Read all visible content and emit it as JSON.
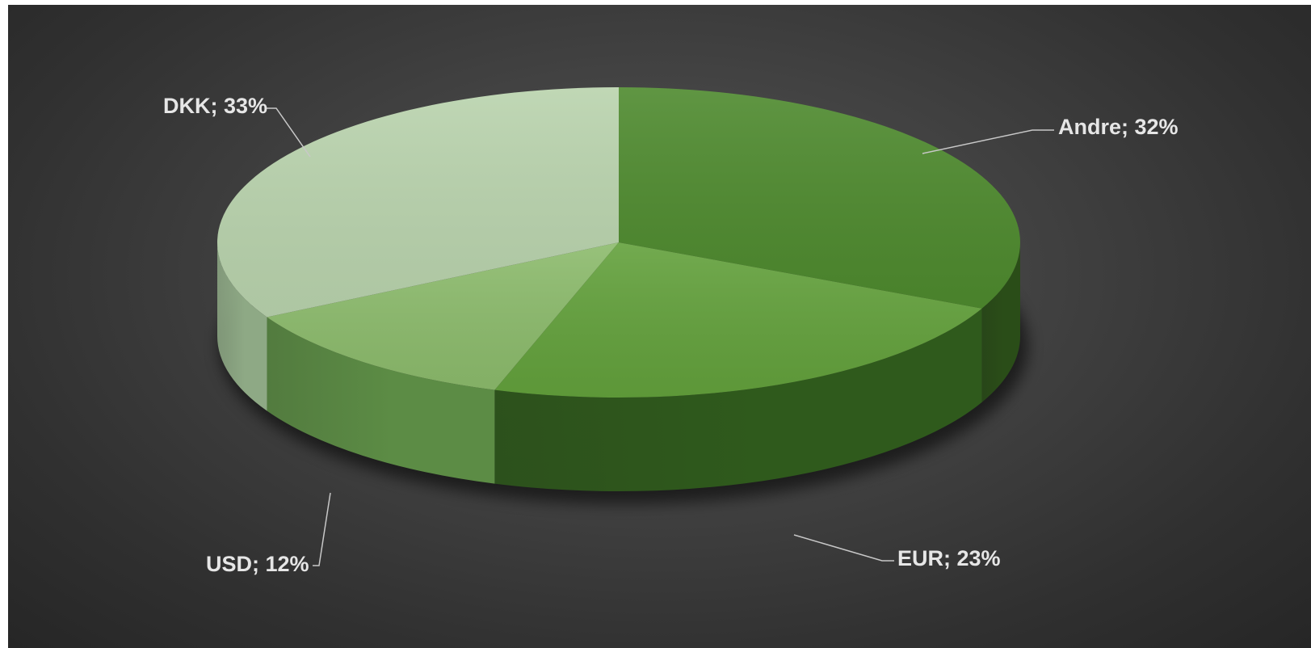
{
  "chart_data": {
    "type": "pie",
    "style": "3d",
    "categories": [
      "Andre",
      "EUR",
      "USD",
      "DKK"
    ],
    "values": [
      32,
      23,
      12,
      33
    ],
    "value_unit": "%",
    "colors": [
      "#4e8a2e",
      "#63a13c",
      "#8cbb6c",
      "#b9d3ad"
    ],
    "side_colors": [
      "#2a4d18",
      "#2f5a1c",
      "#5c8c45",
      "#8ea985"
    ],
    "labels": [
      "Andre; 32%",
      "EUR; 23%",
      "USD; 12%",
      "DKK; 33%"
    ],
    "title": "",
    "legend": "none",
    "background": "#3f3f3f"
  }
}
